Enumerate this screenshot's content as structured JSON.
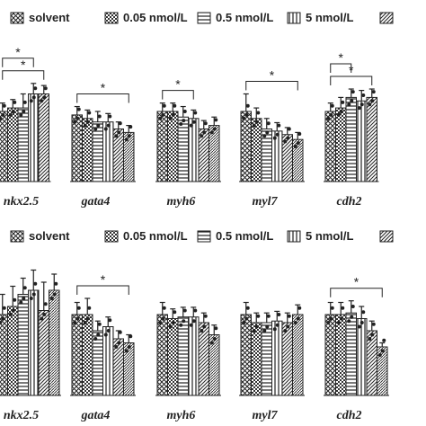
{
  "legend": [
    {
      "label": "solvent",
      "pattern": "pat-cross"
    },
    {
      "label": "0.05 nmol/L",
      "pattern": "pat-check"
    },
    {
      "label": "0.5 nmol/L",
      "pattern": "pat-hlines"
    },
    {
      "label": "5 nmol/L",
      "pattern": "pat-vlines"
    },
    {
      "label": "",
      "pattern": "pat-diag"
    }
  ],
  "colors": {
    "ink": "#222222",
    "background": "#ffffff"
  },
  "chart_data": [
    {
      "type": "bar",
      "categories": [
        "nkx2.5",
        "gata4",
        "myh6",
        "myl7",
        "cdh2"
      ],
      "series_patterns": [
        "pat-cross",
        "pat-check",
        "pat-hlines",
        "pat-vlines",
        "pat-diag",
        "pat-dense"
      ],
      "values": [
        [
          1.0,
          1.05,
          1.05,
          1.25,
          1.25,
          null
        ],
        [
          0.95,
          0.9,
          0.85,
          0.85,
          0.75,
          0.7
        ],
        [
          1.0,
          1.0,
          0.92,
          0.9,
          0.75,
          0.8
        ],
        [
          1.0,
          0.9,
          0.75,
          0.72,
          0.67,
          0.6
        ],
        [
          1.0,
          1.05,
          1.2,
          1.15,
          1.2,
          null
        ]
      ],
      "errors": [
        [
          0.12,
          0.12,
          0.2,
          0.15,
          0.12,
          null
        ],
        [
          0.12,
          0.12,
          0.15,
          0.12,
          0.1,
          0.1
        ],
        [
          0.12,
          0.12,
          0.15,
          0.12,
          0.12,
          0.12
        ],
        [
          0.25,
          0.15,
          0.15,
          0.12,
          0.1,
          0.1
        ],
        [
          0.12,
          0.15,
          0.12,
          0.15,
          0.12,
          null
        ]
      ],
      "significance": [
        {
          "category": "nkx2.5",
          "from": 0,
          "to": 4,
          "label": "*"
        },
        {
          "category": "nkx2.5",
          "from": 0,
          "to": 3,
          "label": "*"
        },
        {
          "category": "gata4",
          "from": 0,
          "to": 5,
          "label": "*"
        },
        {
          "category": "myh6",
          "from": 0,
          "to": 3,
          "label": "*"
        },
        {
          "category": "myl7",
          "from": 0,
          "to": 5,
          "label": "*"
        },
        {
          "category": "cdh2",
          "from": 0,
          "to": 4,
          "label": "*"
        },
        {
          "category": "cdh2",
          "from": 0,
          "to": 2,
          "label": "*"
        }
      ],
      "ylim": [
        0,
        2.0
      ]
    },
    {
      "type": "bar",
      "categories": [
        "nkx2.5",
        "gata4",
        "myh6",
        "myl7",
        "cdh2"
      ],
      "series_patterns": [
        "pat-cross",
        "pat-check",
        "pat-hlines",
        "pat-vlines",
        "pat-diag",
        "pat-dense"
      ],
      "values": [
        [
          1.0,
          1.1,
          1.25,
          1.3,
          1.05,
          1.3
        ],
        [
          1.0,
          1.0,
          0.8,
          0.85,
          0.7,
          0.65
        ],
        [
          1.0,
          0.95,
          0.97,
          0.97,
          0.9,
          0.75
        ],
        [
          1.0,
          0.9,
          0.9,
          0.92,
          0.9,
          1.0
        ],
        [
          1.0,
          1.0,
          1.02,
          0.95,
          0.8,
          0.6
        ]
      ],
      "errors": [
        [
          0.25,
          0.25,
          0.2,
          0.25,
          0.35,
          0.2
        ],
        [
          0.15,
          0.2,
          0.12,
          0.12,
          0.1,
          0.1
        ],
        [
          0.15,
          0.12,
          0.12,
          0.12,
          0.12,
          0.12
        ],
        [
          0.15,
          0.12,
          0.12,
          0.12,
          0.12,
          0.12
        ],
        [
          0.15,
          0.15,
          0.15,
          0.15,
          0.12,
          0.05
        ]
      ],
      "significance": [
        {
          "category": "gata4",
          "from": 0,
          "to": 5,
          "label": "*"
        },
        {
          "category": "cdh2",
          "from": 0,
          "to": 5,
          "label": "*"
        }
      ],
      "ylim": [
        0,
        2.0
      ]
    }
  ]
}
